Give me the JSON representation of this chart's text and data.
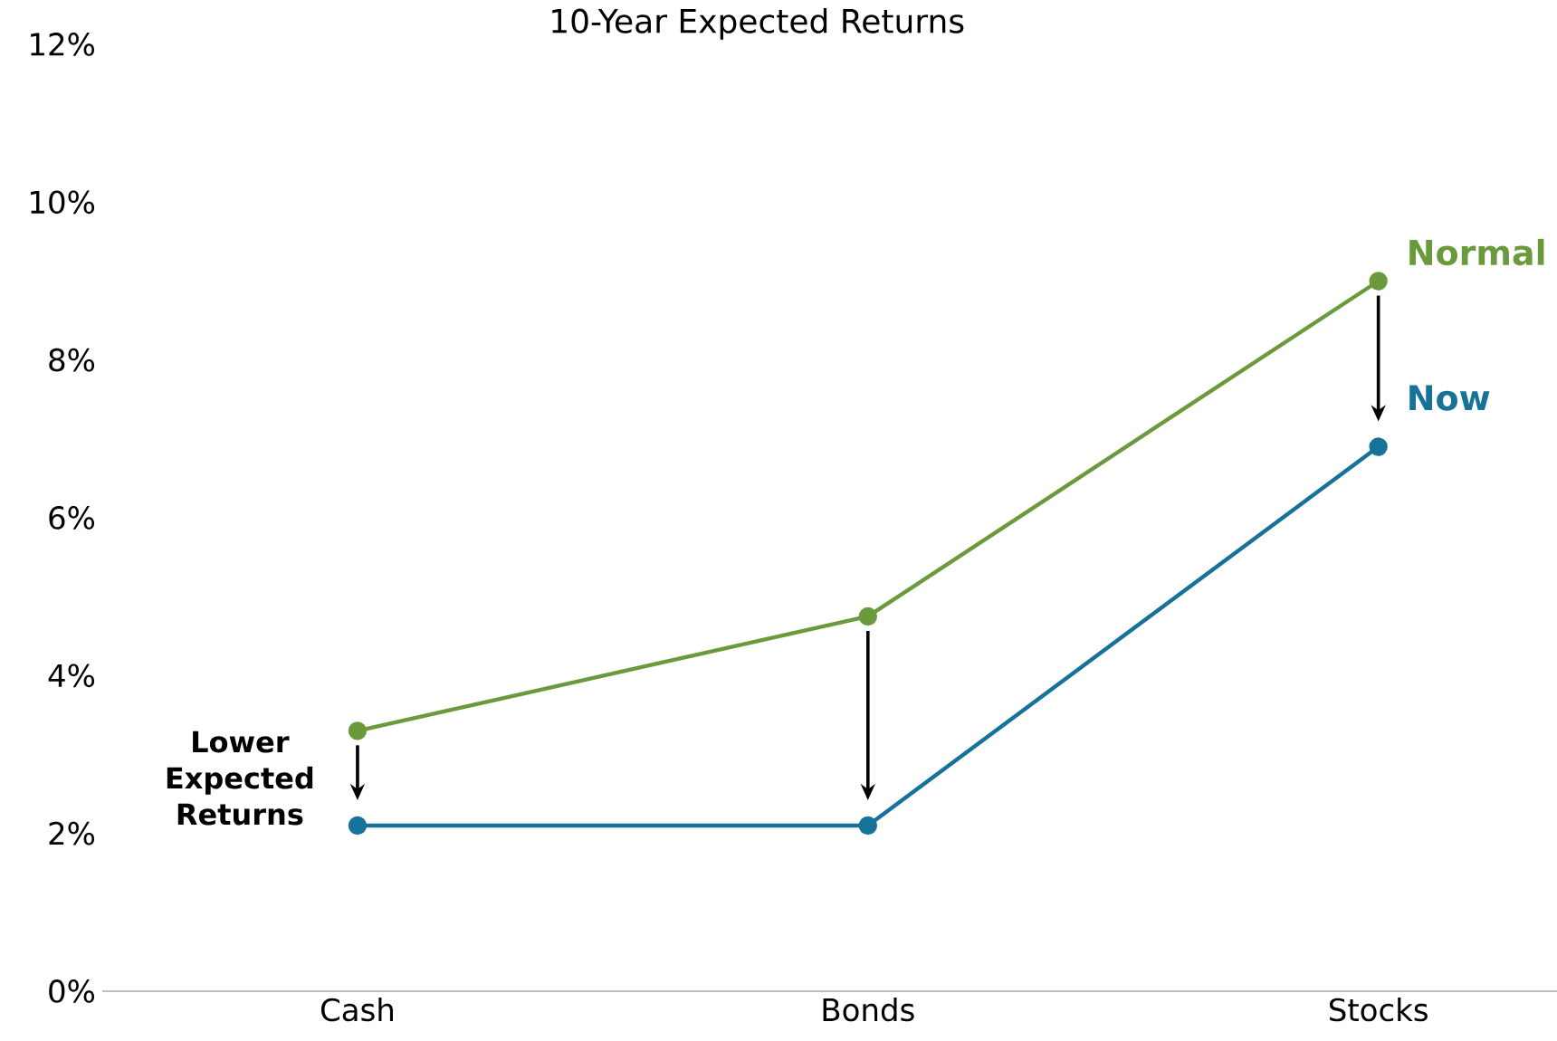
{
  "chart_data": {
    "type": "line",
    "title": "10-Year Expected Returns",
    "categories": [
      "Cash",
      "Bonds",
      "Stocks"
    ],
    "series": [
      {
        "name": "Normal",
        "color": "#6b9a3d",
        "values": [
          3.3,
          4.75,
          9.0
        ]
      },
      {
        "name": "Now",
        "color": "#17729a",
        "values": [
          2.1,
          2.1,
          6.9
        ]
      }
    ],
    "ylim": [
      0,
      12
    ],
    "yticks": [
      {
        "value": 0,
        "label": "0%"
      },
      {
        "value": 2,
        "label": "2%"
      },
      {
        "value": 4,
        "label": "4%"
      },
      {
        "value": 6,
        "label": "6%"
      },
      {
        "value": 8,
        "label": "8%"
      },
      {
        "value": 10,
        "label": "10%"
      },
      {
        "value": 12,
        "label": "12%"
      }
    ],
    "annotations": [
      "Lower Expected Returns"
    ],
    "marker": "circle",
    "line_style": "solid",
    "grid": false,
    "legend": false
  }
}
